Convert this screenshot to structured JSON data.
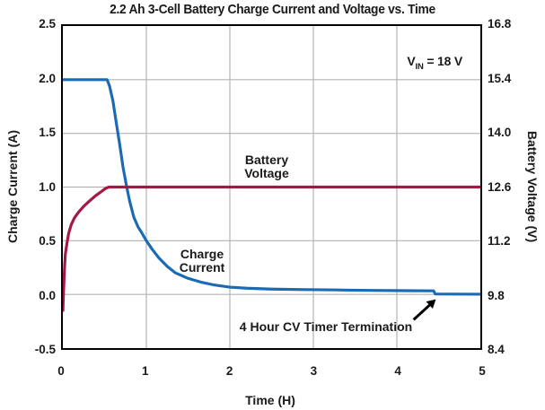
{
  "chart_data": {
    "type": "line",
    "title": "2.2 Ah 3-Cell Battery Charge Current and Voltage vs. Time",
    "xlabel": "Time (H)",
    "ylabel_left": "Charge Current (A)",
    "ylabel_right": "Battery Voltage (V)",
    "xlim": [
      0,
      5
    ],
    "ylim_left": [
      -0.5,
      2.5
    ],
    "ylim_right": [
      8.4,
      16.8
    ],
    "grid": true,
    "legend": "none",
    "xtick_labels": [
      "0",
      "1",
      "2",
      "3",
      "4",
      "5"
    ],
    "ytick_labels_left": [
      "2.5",
      "2.0",
      "1.5",
      "1.0",
      "0.5",
      "0.0",
      "-0.5"
    ],
    "ytick_labels_right": [
      "16.8",
      "15.4",
      "14.0",
      "12.6",
      "11.2",
      "9.8",
      "8.4"
    ],
    "colors": {
      "charge_current": "#1a6bb3",
      "battery_voltage": "#a51843",
      "grid": "#b3b3b3",
      "frame": "#000000",
      "text": "#1a1a1a"
    },
    "series": [
      {
        "name": "Charge Current",
        "axis": "left",
        "unit": "A",
        "color": "#1a6bb3",
        "points": [
          [
            0,
            2.0
          ],
          [
            0.53,
            2.0
          ],
          [
            0.56,
            1.94
          ],
          [
            0.6,
            1.8
          ],
          [
            0.64,
            1.6
          ],
          [
            0.68,
            1.4
          ],
          [
            0.72,
            1.19
          ],
          [
            0.76,
            1.02
          ],
          [
            0.8,
            0.87
          ],
          [
            0.85,
            0.72
          ],
          [
            0.9,
            0.63
          ],
          [
            0.94,
            0.58
          ],
          [
            1.0,
            0.5
          ],
          [
            1.07,
            0.42
          ],
          [
            1.15,
            0.34
          ],
          [
            1.25,
            0.26
          ],
          [
            1.35,
            0.2
          ],
          [
            1.5,
            0.15
          ],
          [
            1.65,
            0.115
          ],
          [
            1.8,
            0.09
          ],
          [
            2.0,
            0.068
          ],
          [
            2.2,
            0.058
          ],
          [
            2.5,
            0.05
          ],
          [
            2.9,
            0.045
          ],
          [
            3.3,
            0.041
          ],
          [
            3.7,
            0.037
          ],
          [
            4.1,
            0.035
          ],
          [
            4.44,
            0.033
          ],
          [
            4.46,
            0.004
          ],
          [
            5,
            0.002
          ]
        ]
      },
      {
        "name": "Battery Voltage",
        "axis": "right",
        "unit": "V",
        "color": "#a51843",
        "points": [
          [
            0,
            9.35
          ],
          [
            0.01,
            9.95
          ],
          [
            0.02,
            10.5
          ],
          [
            0.03,
            10.85
          ],
          [
            0.05,
            11.15
          ],
          [
            0.07,
            11.4
          ],
          [
            0.1,
            11.62
          ],
          [
            0.14,
            11.8
          ],
          [
            0.19,
            11.95
          ],
          [
            0.25,
            12.1
          ],
          [
            0.32,
            12.24
          ],
          [
            0.39,
            12.37
          ],
          [
            0.46,
            12.48
          ],
          [
            0.51,
            12.56
          ],
          [
            0.55,
            12.6
          ],
          [
            5,
            12.6
          ]
        ]
      }
    ],
    "annotations": {
      "vin_prefix": "V",
      "vin_sub": "IN",
      "vin_suffix": " = 18 V",
      "battery_voltage_line1": "Battery",
      "battery_voltage_line2": "Voltage",
      "charge_current_line1": "Charge",
      "charge_current_line2": "Current",
      "timer_termination": "4 Hour CV Timer Termination"
    }
  }
}
